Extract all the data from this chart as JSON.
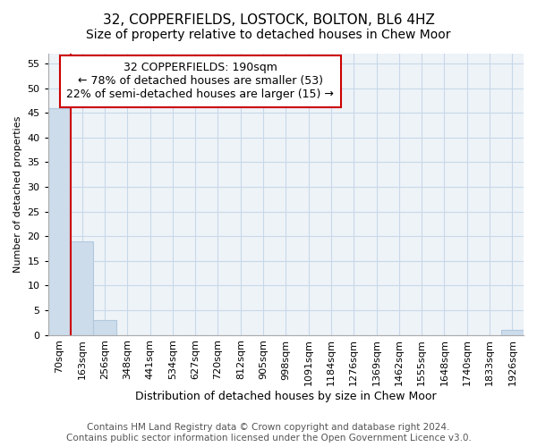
{
  "title": "32, COPPERFIELDS, LOSTOCK, BOLTON, BL6 4HZ",
  "subtitle": "Size of property relative to detached houses in Chew Moor",
  "xlabel_bottom": "Distribution of detached houses by size in Chew Moor",
  "ylabel": "Number of detached properties",
  "categories": [
    "70sqm",
    "163sqm",
    "256sqm",
    "348sqm",
    "441sqm",
    "534sqm",
    "627sqm",
    "720sqm",
    "812sqm",
    "905sqm",
    "998sqm",
    "1091sqm",
    "1184sqm",
    "1276sqm",
    "1369sqm",
    "1462sqm",
    "1555sqm",
    "1648sqm",
    "1740sqm",
    "1833sqm",
    "1926sqm"
  ],
  "values": [
    46,
    19,
    3,
    0,
    0,
    0,
    0,
    0,
    0,
    0,
    0,
    0,
    0,
    0,
    0,
    0,
    0,
    0,
    0,
    0,
    1
  ],
  "bar_color": "#cddceb",
  "bar_edge_color": "#b0c8de",
  "red_line_x": 0.5,
  "ylim": [
    0,
    57
  ],
  "yticks": [
    0,
    5,
    10,
    15,
    20,
    25,
    30,
    35,
    40,
    45,
    50,
    55
  ],
  "annotation_box_line1": "32 COPPERFIELDS: 190sqm",
  "annotation_box_line2": "← 78% of detached houses are smaller (53)",
  "annotation_box_line3": "22% of semi-detached houses are larger (15) →",
  "annotation_box_color": "#ffffff",
  "annotation_box_edge_color": "#cc0000",
  "plot_bg_color": "#eef3f8",
  "footer_line1": "Contains HM Land Registry data © Crown copyright and database right 2024.",
  "footer_line2": "Contains public sector information licensed under the Open Government Licence v3.0.",
  "title_fontsize": 11,
  "subtitle_fontsize": 10,
  "ylabel_fontsize": 8,
  "xlabel_fontsize": 9,
  "tick_fontsize": 8,
  "annot_fontsize": 9,
  "footer_fontsize": 7.5
}
